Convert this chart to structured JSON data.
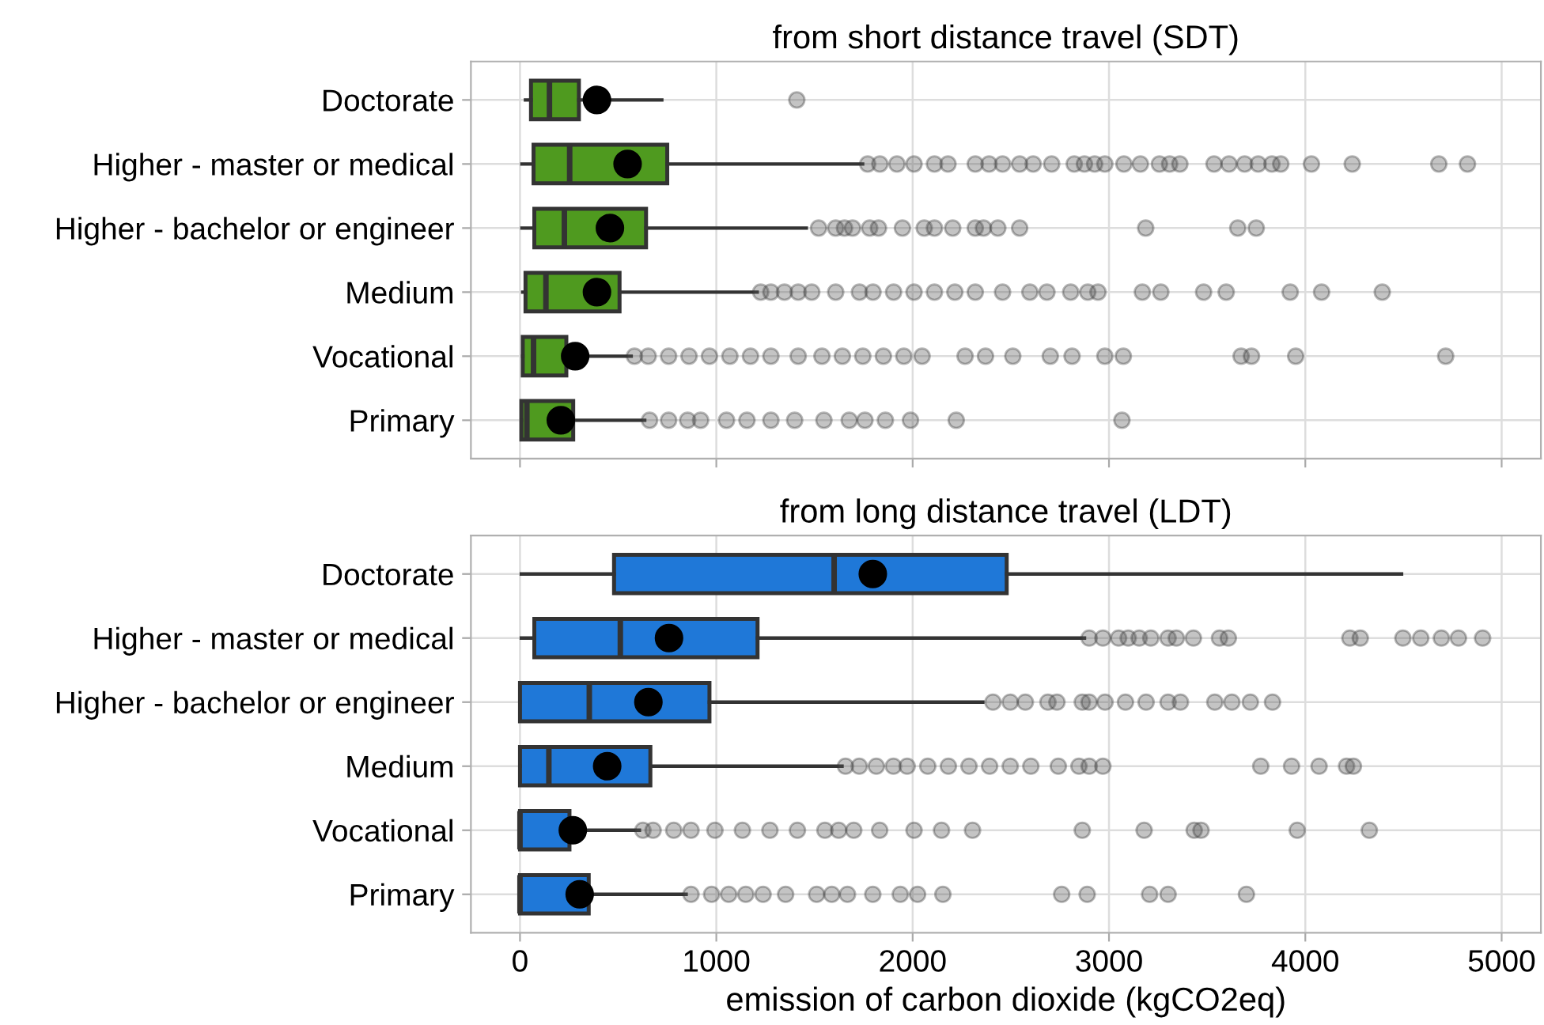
{
  "chart_data": [
    {
      "type": "box",
      "title": "from short distance travel (SDT)",
      "orientation": "horizontal",
      "categories": [
        "Doctorate",
        "Higher - master or medical",
        "Higher - bachelor or engineer",
        "Medium",
        "Vocational",
        "Primary"
      ],
      "xlim": [
        -250,
        5200
      ],
      "xticks": [
        0,
        1000,
        2000,
        3000,
        4000,
        5000
      ],
      "grid": true,
      "tick_labels": "y",
      "series": [
        {
          "color": "#4f9a1f",
          "boxes": [
            {
              "low": 28,
              "q1": 56,
              "median": 150,
              "q3": 300,
              "high": 722,
              "mean": 392,
              "outliers": [
                1410
              ]
            },
            {
              "low": 10,
              "q1": 69,
              "median": 253,
              "q3": 750,
              "high": 1745,
              "mean": 548,
              "outliers": [
                1771,
                1833,
                1920,
                2007,
                2111,
                2180,
                2319,
                2389,
                2458,
                2545,
                2614,
                2708,
                2823,
                2875,
                2927,
                2979,
                3076,
                3160,
                3257,
                3309,
                3361,
                3535,
                3611,
                3691,
                3760,
                3830,
                3875,
                4031,
                4239,
                4680,
                4826
              ]
            },
            {
              "low": 10,
              "q1": 73,
              "median": 226,
              "q3": 642,
              "high": 1458,
              "mean": 458,
              "outliers": [
                1521,
                1608,
                1653,
                1694,
                1781,
                1826,
                1948,
                2059,
                2111,
                2204,
                2319,
                2361,
                2434,
                2545,
                3187,
                3656,
                3750
              ]
            },
            {
              "low": 14,
              "q1": 28,
              "median": 132,
              "q3": 507,
              "high": 1208,
              "mean": 392,
              "outliers": [
                1226,
                1278,
                1347,
                1417,
                1486,
                1608,
                1729,
                1798,
                1903,
                2007,
                2111,
                2215,
                2319,
                2458,
                2597,
                2684,
                2805,
                2892,
                2944,
                3170,
                3264,
                3482,
                3597,
                3923,
                4083,
                4392
              ]
            },
            {
              "low": 14,
              "q1": 14,
              "median": 69,
              "q3": 236,
              "high": 566,
              "mean": 281,
              "outliers": [
                583,
                653,
                757,
                861,
                965,
                1069,
                1174,
                1278,
                1417,
                1538,
                1642,
                1746,
                1851,
                1955,
                2048,
                2267,
                2371,
                2510,
                2701,
                2812,
                2979,
                3073,
                3673,
                3726,
                3951,
                4715
              ]
            },
            {
              "low": 7,
              "q1": 7,
              "median": 35,
              "q3": 271,
              "high": 635,
              "mean": 208,
              "outliers": [
                660,
                757,
                854,
                920,
                1052,
                1156,
                1278,
                1399,
                1548,
                1677,
                1757,
                1861,
                1989,
                2222,
                3066
              ]
            }
          ]
        }
      ]
    },
    {
      "type": "box",
      "title": "from long distance travel (LDT)",
      "xlabel": "emission of carbon dioxide (kgCO2eq)",
      "orientation": "horizontal",
      "categories": [
        "Doctorate",
        "Higher - master or medical",
        "Higher - bachelor or engineer",
        "Medium",
        "Vocational",
        "Primary"
      ],
      "xlim": [
        -250,
        5200
      ],
      "xticks": [
        0,
        1000,
        2000,
        3000,
        4000,
        5000
      ],
      "grid": true,
      "series": [
        {
          "color": "#1f78d8",
          "boxes": [
            {
              "low": 7,
              "q1": 479,
              "median": 1600,
              "q3": 2479,
              "high": 4490,
              "mean": 1797
            },
            {
              "low": 7,
              "q1": 73,
              "median": 511,
              "q3": 1210,
              "high": 2875,
              "mean": 759,
              "outliers": [
                2899,
                2969,
                3049,
                3098,
                3154,
                3213,
                3301,
                3343,
                3430,
                3563,
                3608,
                4227,
                4280,
                4497,
                4588,
                4693,
                4780,
                4903
              ]
            },
            {
              "low": 0,
              "q1": 0,
              "median": 353,
              "q3": 965,
              "high": 2357,
              "mean": 654,
              "outliers": [
                2409,
                2497,
                2574,
                2689,
                2735,
                2864,
                2899,
                2980,
                3084,
                3189,
                3301,
                3364,
                3539,
                3626,
                3720,
                3833
              ]
            },
            {
              "low": 0,
              "q1": 0,
              "median": 147,
              "q3": 664,
              "high": 1640,
              "mean": 444,
              "outliers": [
                1658,
                1728,
                1815,
                1902,
                1972,
                2077,
                2182,
                2287,
                2392,
                2497,
                2602,
                2742,
                2847,
                2899,
                2969,
                3773,
                3930,
                4070,
                4210,
                4245
              ]
            },
            {
              "low": 0,
              "q1": 0,
              "median": 0,
              "q3": 252,
              "high": 608,
              "mean": 269,
              "outliers": [
                626,
                678,
                783,
                871,
                993,
                1133,
                1273,
                1413,
                1553,
                1623,
                1700,
                1832,
                2007,
                2147,
                2305,
                2864,
                3179,
                3434,
                3469,
                3959,
                4326
              ]
            },
            {
              "low": 0,
              "q1": 0,
              "median": 0,
              "q3": 350,
              "high": 846,
              "mean": 304,
              "outliers": [
                871,
                976,
                1063,
                1150,
                1238,
                1353,
                1511,
                1588,
                1668,
                1797,
                1937,
                2025,
                2154,
                2759,
                2889,
                3207,
                3301,
                3700
              ]
            }
          ]
        }
      ]
    }
  ]
}
